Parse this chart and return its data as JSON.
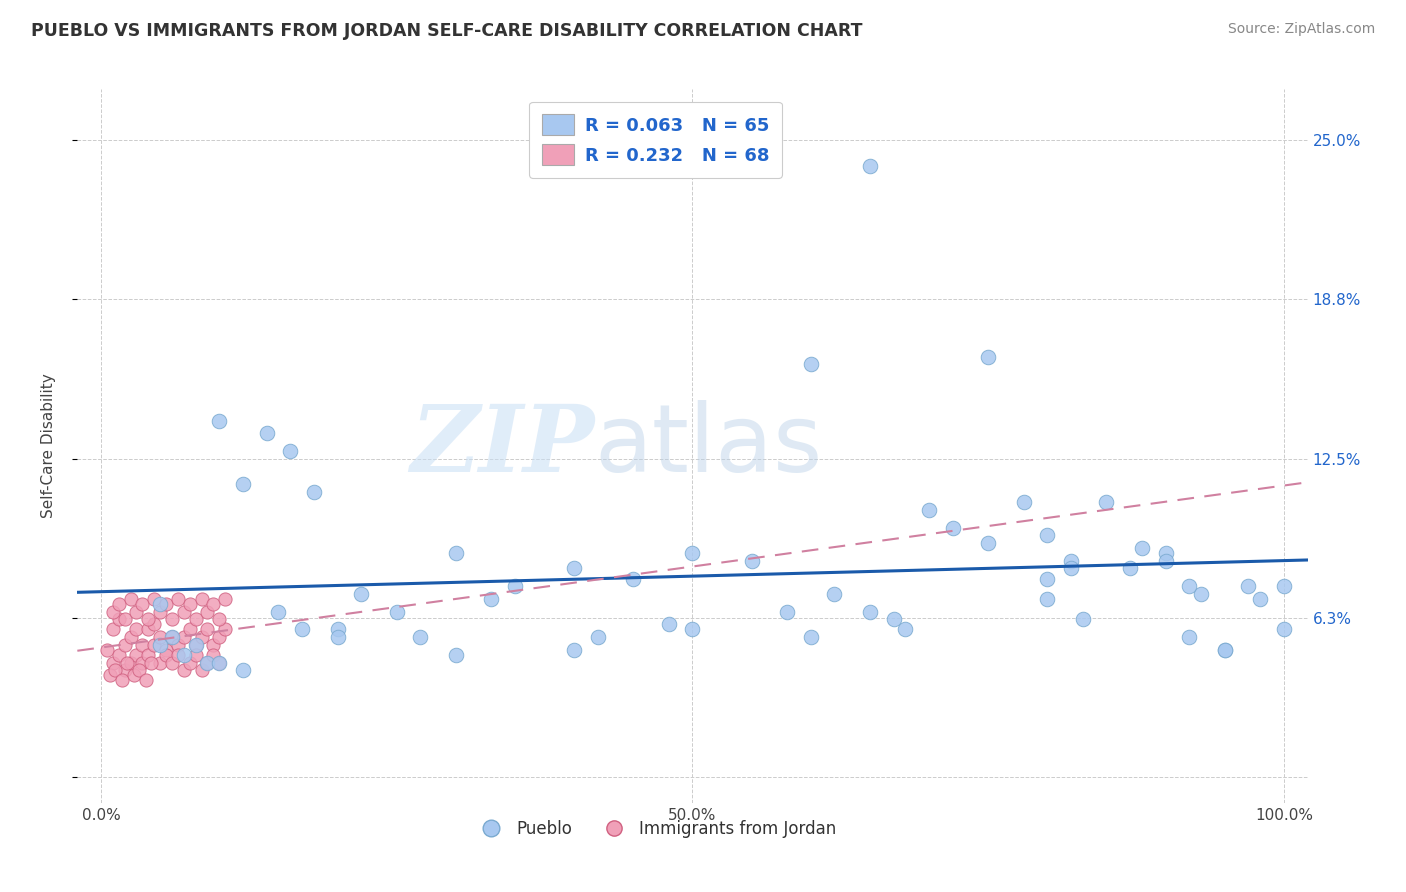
{
  "title": "PUEBLO VS IMMIGRANTS FROM JORDAN SELF-CARE DISABILITY CORRELATION CHART",
  "source": "Source: ZipAtlas.com",
  "ylabel": "Self-Care Disability",
  "xlim": [
    0,
    100
  ],
  "ylim": [
    0,
    25
  ],
  "pueblo_color": "#a8c8f0",
  "pueblo_edge": "#7aaad0",
  "jordan_color": "#f0a0b8",
  "jordan_edge": "#d06080",
  "trend_pueblo_color": "#1a5aaa",
  "trend_jordan_color": "#d080a0",
  "legend_R_pueblo": "R = 0.063",
  "legend_N_pueblo": "N = 65",
  "legend_R_jordan": "R = 0.232",
  "legend_N_jordan": "N = 68",
  "grid_color": "#cccccc",
  "watermark_zip": "ZIP",
  "watermark_atlas": "atlas",
  "pueblo_x": [
    10,
    12,
    14,
    16,
    18,
    55,
    60,
    35,
    40,
    50,
    70,
    72,
    75,
    78,
    80,
    82,
    85,
    87,
    88,
    90,
    92,
    93,
    95,
    97,
    98,
    100,
    65,
    75,
    30,
    33,
    20,
    22,
    25,
    27,
    45,
    48,
    58,
    62,
    6,
    7,
    8,
    9,
    15,
    17,
    40,
    42,
    67,
    68,
    80,
    83,
    90,
    92,
    5,
    5,
    10,
    12,
    20,
    30,
    50,
    60,
    65,
    80,
    82,
    95,
    100
  ],
  "pueblo_y": [
    14.0,
    11.5,
    13.5,
    12.8,
    11.2,
    8.5,
    16.2,
    7.5,
    8.2,
    8.8,
    10.5,
    9.8,
    9.2,
    10.8,
    9.5,
    8.5,
    10.8,
    8.2,
    9.0,
    8.8,
    5.5,
    7.2,
    5.0,
    7.5,
    7.0,
    7.5,
    24.0,
    16.5,
    8.8,
    7.0,
    5.8,
    7.2,
    6.5,
    5.5,
    7.8,
    6.0,
    6.5,
    7.2,
    5.5,
    4.8,
    5.2,
    4.5,
    6.5,
    5.8,
    5.0,
    5.5,
    6.2,
    5.8,
    7.8,
    6.2,
    8.5,
    7.5,
    6.8,
    5.2,
    4.5,
    4.2,
    5.5,
    4.8,
    5.8,
    5.5,
    6.5,
    7.0,
    8.2,
    5.0,
    5.8
  ],
  "jordan_x": [
    0.5,
    1,
    1,
    1.5,
    1.5,
    2,
    2,
    2.5,
    2.5,
    3,
    3,
    3.5,
    3.5,
    4,
    4,
    4.5,
    4.5,
    5,
    5,
    5.5,
    5.5,
    6,
    6,
    6.5,
    6.5,
    7,
    7,
    7.5,
    7.5,
    8,
    8,
    8.5,
    8.5,
    9,
    9,
    9.5,
    9.5,
    10,
    10,
    10.5,
    1,
    1.5,
    2,
    2.5,
    3,
    3.5,
    4,
    4.5,
    5,
    5.5,
    6,
    6.5,
    7,
    7.5,
    8,
    8.5,
    9,
    9.5,
    10,
    10.5,
    0.8,
    1.2,
    1.8,
    2.2,
    2.8,
    3.2,
    3.8,
    4.2
  ],
  "jordan_y": [
    5.0,
    4.5,
    5.8,
    4.8,
    6.2,
    5.2,
    4.2,
    5.5,
    4.5,
    5.8,
    4.8,
    5.2,
    4.5,
    5.8,
    4.8,
    6.0,
    5.2,
    4.5,
    5.5,
    5.0,
    4.8,
    5.5,
    4.5,
    5.2,
    4.8,
    5.5,
    4.2,
    5.8,
    4.5,
    5.2,
    4.8,
    5.5,
    4.2,
    5.8,
    4.5,
    5.2,
    4.8,
    5.5,
    4.5,
    5.8,
    6.5,
    6.8,
    6.2,
    7.0,
    6.5,
    6.8,
    6.2,
    7.0,
    6.5,
    6.8,
    6.2,
    7.0,
    6.5,
    6.8,
    6.2,
    7.0,
    6.5,
    6.8,
    6.2,
    7.0,
    4.0,
    4.2,
    3.8,
    4.5,
    4.0,
    4.2,
    3.8,
    4.5
  ]
}
